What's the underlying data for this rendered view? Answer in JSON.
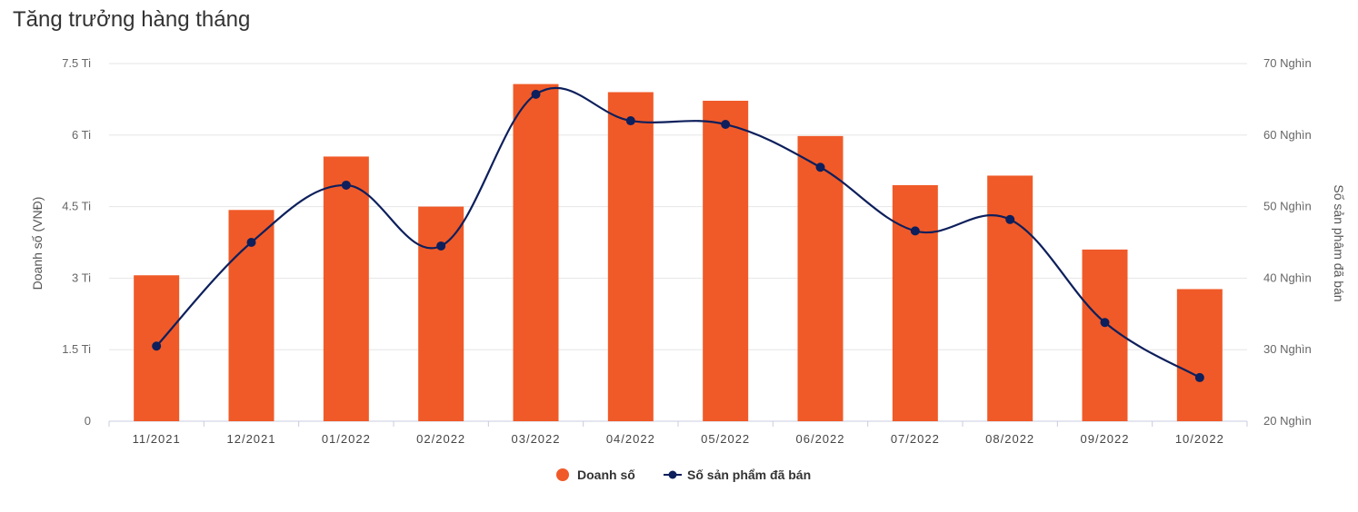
{
  "chart_data": {
    "type": "bar",
    "title": "Tăng trưởng hàng tháng",
    "categories": [
      "11/2021",
      "12/2021",
      "01/2022",
      "02/2022",
      "03/2022",
      "04/2022",
      "05/2022",
      "06/2022",
      "07/2022",
      "08/2022",
      "09/2022",
      "10/2022"
    ],
    "y_left": {
      "label": "Doanh số (VNĐ)",
      "range": [
        0,
        7.5
      ],
      "ticks": [
        0,
        1.5,
        3,
        4.5,
        6,
        7.5
      ],
      "tick_labels": [
        "0",
        "1.5 Ti",
        "3 Ti",
        "4.5 Ti",
        "6 Ti",
        "7.5 Ti"
      ]
    },
    "y_right": {
      "label": "Số sản phâm đã bán",
      "range": [
        20,
        70
      ],
      "ticks": [
        20,
        30,
        40,
        50,
        60,
        70
      ],
      "tick_labels": [
        "20 Nghìn",
        "30 Nghìn",
        "40 Nghìn",
        "50 Nghìn",
        "60 Nghìn",
        "70 Nghìn"
      ]
    },
    "series": [
      {
        "name": "Doanh số",
        "type": "bar",
        "axis": "left",
        "color": "#f05a28",
        "values": [
          3.06,
          4.43,
          5.55,
          4.5,
          7.07,
          6.9,
          6.72,
          5.98,
          4.95,
          5.15,
          3.6,
          2.77
        ]
      },
      {
        "name": "Số sản phẩm đã bán",
        "type": "line",
        "axis": "right",
        "color": "#0d1f5c",
        "values": [
          30.5,
          45.0,
          53.0,
          44.5,
          65.7,
          62.0,
          61.5,
          55.5,
          46.6,
          48.2,
          33.8,
          26.1
        ]
      }
    ],
    "legend": "bottom-center",
    "grid": true
  }
}
